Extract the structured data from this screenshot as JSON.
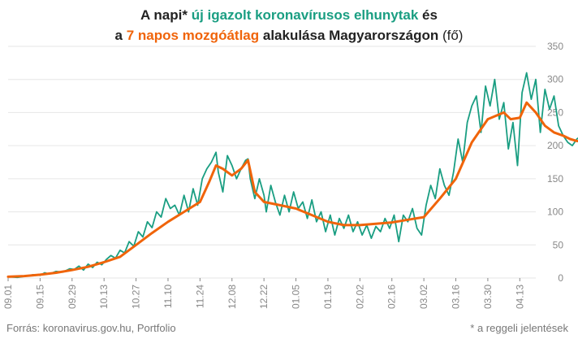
{
  "title": {
    "line1_prefix": "A napi* ",
    "line1_highlight": "új igazolt koronavírusos elhunytak",
    "line1_suffix": " és",
    "line2_prefix": "a ",
    "line2_highlight": "7 napos mozgóátlag",
    "line2_middle": " alakulása Magyarországon",
    "line2_unit": " (fő)"
  },
  "footer": {
    "source": "Forrás: koronavirus.gov.hu, Portfolio",
    "note": "* a reggeli jelentések"
  },
  "colors": {
    "daily": "#1a9e82",
    "average": "#f0640a",
    "grid": "#e6e6e6",
    "axis": "#888888"
  },
  "chart_data": {
    "type": "line",
    "title": "A napi* új igazolt koronavírusos elhunytak és a 7 napos mozgóátlag alakulása Magyarországon (fő)",
    "xlabel": "",
    "ylabel": "",
    "ylim": [
      0,
      350
    ],
    "y_axis_side": "right",
    "grid": true,
    "yticks": [
      0,
      50,
      100,
      150,
      200,
      250,
      300,
      350
    ],
    "xticks": [
      "09.01",
      "09.15",
      "09.29",
      "10.13",
      "10.27",
      "11.10",
      "11.24",
      "12.08",
      "12.22",
      "01.05",
      "01.19",
      "02.02",
      "02.16",
      "03.02",
      "03.16",
      "03.30",
      "04.13"
    ],
    "x_start": "09.01",
    "x_step_days": 14,
    "series": [
      {
        "name": "új igazolt koronavírusos elhunytak",
        "points": [
          [
            0,
            2
          ],
          [
            4,
            1
          ],
          [
            8,
            3
          ],
          [
            11,
            5
          ],
          [
            14,
            4
          ],
          [
            16,
            8
          ],
          [
            18,
            6
          ],
          [
            21,
            10
          ],
          [
            24,
            9
          ],
          [
            27,
            14
          ],
          [
            29,
            13
          ],
          [
            31,
            18
          ],
          [
            33,
            12
          ],
          [
            35,
            21
          ],
          [
            37,
            16
          ],
          [
            39,
            24
          ],
          [
            41,
            20
          ],
          [
            43,
            28
          ],
          [
            45,
            34
          ],
          [
            47,
            30
          ],
          [
            49,
            42
          ],
          [
            51,
            38
          ],
          [
            53,
            55
          ],
          [
            55,
            48
          ],
          [
            57,
            70
          ],
          [
            59,
            62
          ],
          [
            61,
            85
          ],
          [
            63,
            76
          ],
          [
            65,
            100
          ],
          [
            67,
            92
          ],
          [
            69,
            120
          ],
          [
            71,
            105
          ],
          [
            73,
            110
          ],
          [
            75,
            95
          ],
          [
            77,
            125
          ],
          [
            79,
            100
          ],
          [
            81,
            135
          ],
          [
            83,
            110
          ],
          [
            85,
            150
          ],
          [
            87,
            165
          ],
          [
            89,
            175
          ],
          [
            91,
            190
          ],
          [
            92,
            160
          ],
          [
            94,
            130
          ],
          [
            96,
            185
          ],
          [
            98,
            170
          ],
          [
            100,
            150
          ],
          [
            102,
            165
          ],
          [
            104,
            178
          ],
          [
            105,
            180
          ],
          [
            106,
            150
          ],
          [
            108,
            120
          ],
          [
            110,
            150
          ],
          [
            112,
            125
          ],
          [
            113,
            100
          ],
          [
            115,
            140
          ],
          [
            117,
            115
          ],
          [
            119,
            95
          ],
          [
            121,
            125
          ],
          [
            123,
            100
          ],
          [
            125,
            130
          ],
          [
            127,
            105
          ],
          [
            129,
            115
          ],
          [
            131,
            90
          ],
          [
            133,
            118
          ],
          [
            135,
            85
          ],
          [
            137,
            100
          ],
          [
            139,
            70
          ],
          [
            141,
            95
          ],
          [
            143,
            65
          ],
          [
            145,
            90
          ],
          [
            147,
            75
          ],
          [
            149,
            95
          ],
          [
            151,
            70
          ],
          [
            153,
            85
          ],
          [
            155,
            65
          ],
          [
            157,
            80
          ],
          [
            159,
            60
          ],
          [
            161,
            78
          ],
          [
            163,
            70
          ],
          [
            165,
            90
          ],
          [
            167,
            75
          ],
          [
            169,
            95
          ],
          [
            171,
            55
          ],
          [
            173,
            95
          ],
          [
            175,
            85
          ],
          [
            177,
            105
          ],
          [
            179,
            75
          ],
          [
            181,
            65
          ],
          [
            183,
            110
          ],
          [
            185,
            140
          ],
          [
            187,
            120
          ],
          [
            189,
            165
          ],
          [
            191,
            140
          ],
          [
            193,
            125
          ],
          [
            195,
            160
          ],
          [
            197,
            210
          ],
          [
            199,
            175
          ],
          [
            201,
            235
          ],
          [
            203,
            260
          ],
          [
            205,
            275
          ],
          [
            207,
            220
          ],
          [
            209,
            290
          ],
          [
            211,
            260
          ],
          [
            213,
            300
          ],
          [
            215,
            240
          ],
          [
            217,
            265
          ],
          [
            219,
            195
          ],
          [
            221,
            235
          ],
          [
            223,
            170
          ],
          [
            225,
            280
          ],
          [
            227,
            310
          ],
          [
            229,
            270
          ],
          [
            231,
            300
          ],
          [
            233,
            220
          ],
          [
            235,
            285
          ],
          [
            237,
            255
          ],
          [
            239,
            275
          ],
          [
            241,
            230
          ],
          [
            243,
            215
          ],
          [
            245,
            205
          ],
          [
            247,
            200
          ],
          [
            249,
            210
          ],
          [
            251,
            215
          ],
          [
            253,
            205
          ]
        ]
      },
      {
        "name": "7 napos mozgóátlag",
        "points": [
          [
            0,
            2
          ],
          [
            7,
            3
          ],
          [
            14,
            5
          ],
          [
            21,
            8
          ],
          [
            28,
            12
          ],
          [
            35,
            17
          ],
          [
            42,
            24
          ],
          [
            49,
            32
          ],
          [
            56,
            50
          ],
          [
            63,
            68
          ],
          [
            70,
            85
          ],
          [
            77,
            100
          ],
          [
            84,
            115
          ],
          [
            88,
            145
          ],
          [
            91,
            170
          ],
          [
            94,
            165
          ],
          [
            98,
            155
          ],
          [
            102,
            165
          ],
          [
            105,
            178
          ],
          [
            108,
            130
          ],
          [
            112,
            115
          ],
          [
            119,
            110
          ],
          [
            126,
            105
          ],
          [
            133,
            95
          ],
          [
            140,
            85
          ],
          [
            147,
            80
          ],
          [
            154,
            80
          ],
          [
            161,
            82
          ],
          [
            168,
            84
          ],
          [
            175,
            88
          ],
          [
            182,
            92
          ],
          [
            189,
            120
          ],
          [
            196,
            150
          ],
          [
            203,
            205
          ],
          [
            210,
            240
          ],
          [
            217,
            250
          ],
          [
            220,
            240
          ],
          [
            224,
            242
          ],
          [
            227,
            265
          ],
          [
            231,
            250
          ],
          [
            235,
            230
          ],
          [
            239,
            220
          ],
          [
            243,
            215
          ],
          [
            246,
            210
          ],
          [
            249,
            207
          ],
          [
            253,
            205
          ]
        ]
      }
    ]
  }
}
